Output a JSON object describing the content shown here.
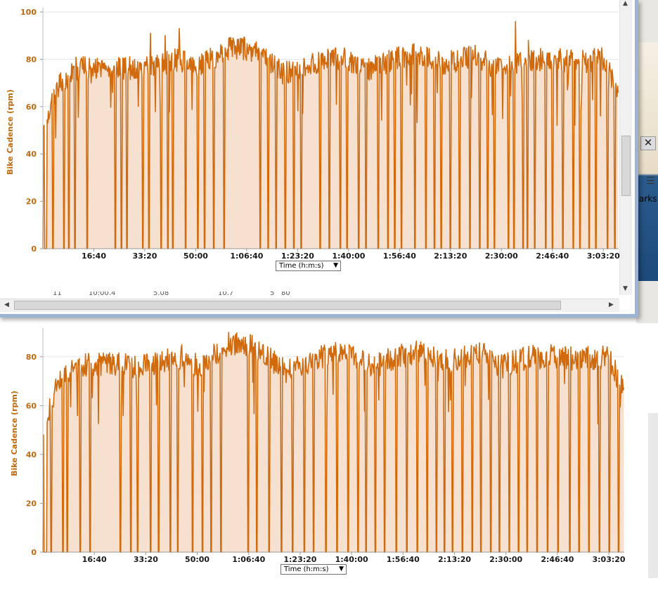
{
  "window": {
    "peek_row_values": [
      "11",
      "10:00.4",
      "5.08",
      "10.7",
      "5",
      "80"
    ]
  },
  "side_panel": {
    "close_glyph": "✕",
    "list_icon": "list-icon",
    "partial_text": "arks"
  },
  "colors": {
    "line": "#d06a0c",
    "fill": "#f6e1d0",
    "axis_text": "#c06a10",
    "grid": "#e6e6e6"
  },
  "charts": [
    {
      "id": "top",
      "xaxis_select": "Time (h:m:s)",
      "ylabel": "Bike Cadence (rpm)",
      "ytick_labels": [
        "0",
        "20",
        "40",
        "60",
        "80",
        "100"
      ],
      "xtick_labels": [
        "16:40",
        "33:20",
        "50:00",
        "1:06:40",
        "1:23:20",
        "1:40:00",
        "1:56:40",
        "2:13:20",
        "2:30:00",
        "2:46:40",
        "3:03:20"
      ]
    },
    {
      "id": "bottom",
      "xaxis_select": "Time (h:m:s)",
      "ylabel": "Bike Cadence (rpm)",
      "ytick_labels": [
        "0",
        "20",
        "40",
        "60",
        "80"
      ],
      "xtick_labels": [
        "16:40",
        "33:20",
        "50:00",
        "1:06:40",
        "1:23:20",
        "1:40:00",
        "1:56:40",
        "2:13:20",
        "2:30:00",
        "2:46:40",
        "3:03:20"
      ]
    }
  ],
  "chart_data": [
    {
      "type": "area",
      "ylabel": "Bike Cadence (rpm)",
      "xlabel": "Time (h:m:s)",
      "ylim": [
        0,
        100
      ],
      "xlim_seconds": [
        0,
        11300
      ],
      "xticks_seconds": [
        1000,
        2000,
        3000,
        4000,
        5000,
        6000,
        7000,
        8000,
        9000,
        10000,
        11000
      ],
      "grid": true,
      "base_levels": [
        [
          0,
          50
        ],
        [
          300,
          68
        ],
        [
          600,
          76
        ],
        [
          1300,
          77
        ],
        [
          1900,
          76
        ],
        [
          2300,
          78
        ],
        [
          2700,
          80
        ],
        [
          3000,
          76
        ],
        [
          3600,
          84
        ],
        [
          3900,
          85
        ],
        [
          4300,
          82
        ],
        [
          4700,
          74
        ],
        [
          5100,
          76
        ],
        [
          5500,
          80
        ],
        [
          6000,
          80
        ],
        [
          6400,
          76
        ],
        [
          6900,
          80
        ],
        [
          7300,
          82
        ],
        [
          7900,
          78
        ],
        [
          8500,
          82
        ],
        [
          8900,
          76
        ],
        [
          9500,
          80
        ],
        [
          10000,
          80
        ],
        [
          10500,
          79
        ],
        [
          11000,
          80
        ],
        [
          11300,
          65
        ]
      ],
      "dropouts_seconds": [
        50,
        190,
        410,
        500,
        620,
        860,
        1420,
        1540,
        1640,
        1960,
        2080,
        2320,
        2450,
        2540,
        2800,
        3030,
        3170,
        3350,
        3550,
        4260,
        4420,
        4570,
        4750,
        4920,
        5060,
        5440,
        5620,
        5830,
        5960,
        6190,
        6330,
        6570,
        6770,
        6900,
        7030,
        7300,
        7510,
        7680,
        7810,
        7990,
        8170,
        8380,
        8570,
        8720,
        8860,
        9130,
        9240,
        9420,
        9500,
        9650,
        9860,
        10000,
        10200,
        10400,
        10530,
        10710,
        10850,
        11080,
        11220
      ],
      "spikes": [
        [
          2110,
          91
        ],
        [
          2400,
          90
        ],
        [
          2680,
          93
        ],
        [
          9270,
          96
        ],
        [
          9530,
          88
        ]
      ],
      "noise_amplitude": 5
    },
    {
      "type": "area",
      "ylabel": "Bike Cadence (rpm)",
      "xlabel": "Time (h:m:s)",
      "ylim": [
        0,
        90
      ],
      "xlim_seconds": [
        0,
        11300
      ],
      "xticks_seconds": [
        1000,
        2000,
        3000,
        4000,
        5000,
        6000,
        7000,
        8000,
        9000,
        10000,
        11000
      ],
      "grid": true,
      "base_levels": [
        [
          0,
          50
        ],
        [
          300,
          70
        ],
        [
          600,
          76
        ],
        [
          1300,
          77
        ],
        [
          1900,
          76
        ],
        [
          2300,
          78
        ],
        [
          2700,
          80
        ],
        [
          3000,
          76
        ],
        [
          3600,
          85
        ],
        [
          3900,
          86
        ],
        [
          4300,
          81
        ],
        [
          4700,
          74
        ],
        [
          5100,
          77
        ],
        [
          5500,
          81
        ],
        [
          6000,
          81
        ],
        [
          6400,
          76
        ],
        [
          6900,
          80
        ],
        [
          7300,
          82
        ],
        [
          7900,
          78
        ],
        [
          8500,
          82
        ],
        [
          8900,
          76
        ],
        [
          9500,
          80
        ],
        [
          10000,
          80
        ],
        [
          10500,
          79
        ],
        [
          11000,
          80
        ],
        [
          11300,
          65
        ]
      ],
      "dropouts_seconds": [
        40,
        160,
        380,
        470,
        720,
        910,
        1500,
        1700,
        1830,
        2090,
        2240,
        2470,
        2610,
        2900,
        3100,
        3260,
        3460,
        3980,
        4150,
        4390,
        4630,
        4850,
        5080,
        5250,
        5490,
        5710,
        5930,
        6120,
        6280,
        6450,
        6640,
        6860,
        7070,
        7270,
        7460,
        7640,
        7800,
        7960,
        8150,
        8340,
        8510,
        8700,
        8870,
        9060,
        9240,
        9410,
        9600,
        9800,
        10010,
        10230,
        10420,
        10610,
        10810,
        11000,
        11180
      ],
      "spikes": [
        [
          3940,
          88
        ],
        [
          9600,
          94
        ],
        [
          10930,
          82
        ]
      ],
      "noise_amplitude": 5
    }
  ]
}
